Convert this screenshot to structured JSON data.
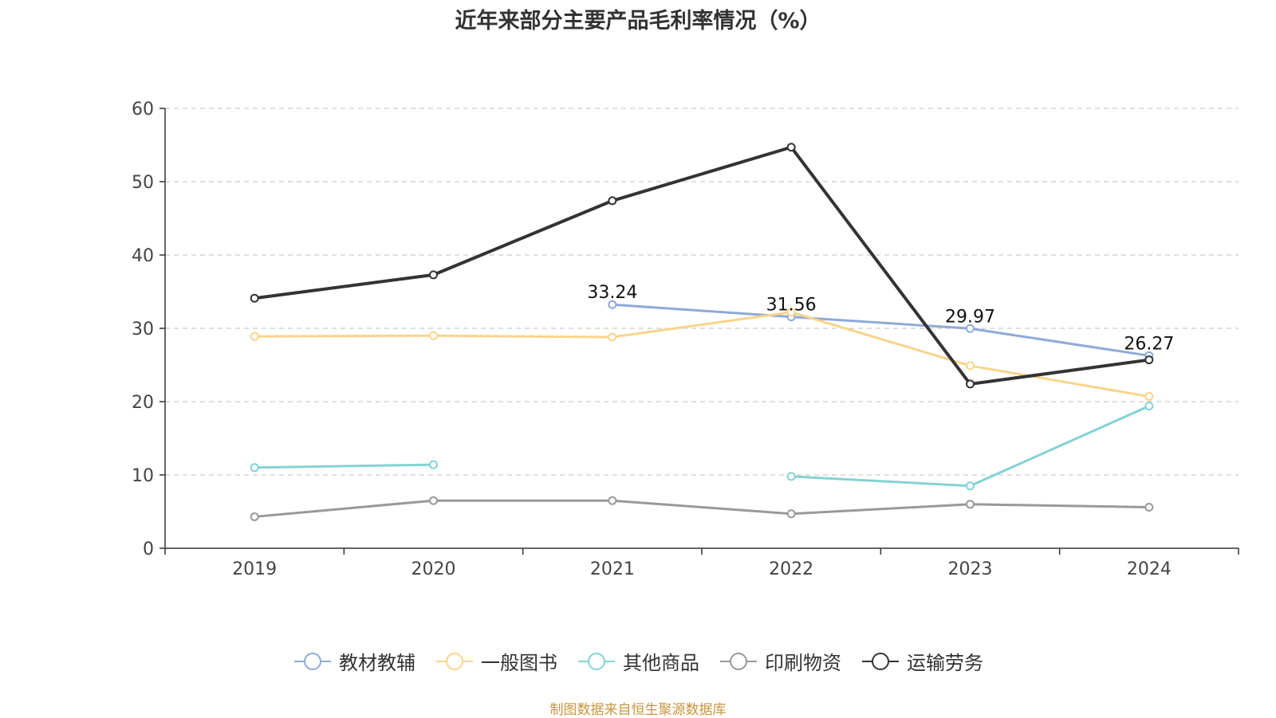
{
  "title": "近年来部分主要产品毛利率情况（%）",
  "source": "制图数据来自恒生聚源数据库",
  "chart_data": {
    "type": "line",
    "categories": [
      "2019",
      "2020",
      "2021",
      "2022",
      "2023",
      "2024"
    ],
    "ylim": [
      0,
      60
    ],
    "yticks": [
      0,
      10,
      20,
      30,
      40,
      50,
      60
    ],
    "grid": true,
    "legend_position": "bottom",
    "series": [
      {
        "name": "教材教辅",
        "color": "#8eaad8",
        "width": 3,
        "labels": true,
        "values": [
          null,
          null,
          33.24,
          31.56,
          29.97,
          26.27
        ]
      },
      {
        "name": "一般图书",
        "color": "#fad48a",
        "width": 3,
        "labels": false,
        "values": [
          28.9,
          29.0,
          28.8,
          32.2,
          24.9,
          20.7
        ]
      },
      {
        "name": "其他商品",
        "color": "#84d2d4",
        "width": 3,
        "labels": false,
        "values": [
          11.0,
          11.4,
          null,
          9.8,
          8.5,
          19.4
        ]
      },
      {
        "name": "印刷物资",
        "color": "#999999",
        "width": 3,
        "labels": false,
        "values": [
          4.3,
          6.5,
          6.5,
          4.7,
          6.0,
          5.6
        ]
      },
      {
        "name": "运输劳务",
        "color": "#333333",
        "width": 4,
        "labels": false,
        "values": [
          34.1,
          37.3,
          47.4,
          54.7,
          22.4,
          25.7
        ]
      }
    ]
  }
}
